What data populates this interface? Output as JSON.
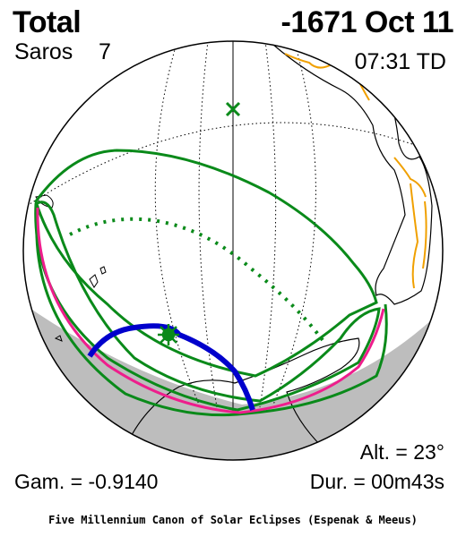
{
  "header": {
    "eclipse_type": "Total",
    "date": "-1671 Oct 11",
    "saros_label": "Saros",
    "saros_number": "7",
    "time": "07:31 TD"
  },
  "footer": {
    "gamma": "Gam. = -0.9140",
    "altitude": "Alt. = 23°",
    "duration": "Dur. = 00m43s",
    "credit": "Five Millennium Canon of Solar Eclipses (Espenak & Meeus)"
  },
  "colors": {
    "penumbra_outline": "#0a8a1a",
    "central_path_limit": "#ee1d8c",
    "umbra_path": "#0000cc",
    "night_shade": "#bdbdbd",
    "coastline": "#000000",
    "borders": "#f0a000",
    "greatest_eclipse_marker": "#0a8a1a"
  },
  "icons": {
    "subsolar_point": "x-marker-icon",
    "greatest_eclipse": "star-marker-icon"
  }
}
